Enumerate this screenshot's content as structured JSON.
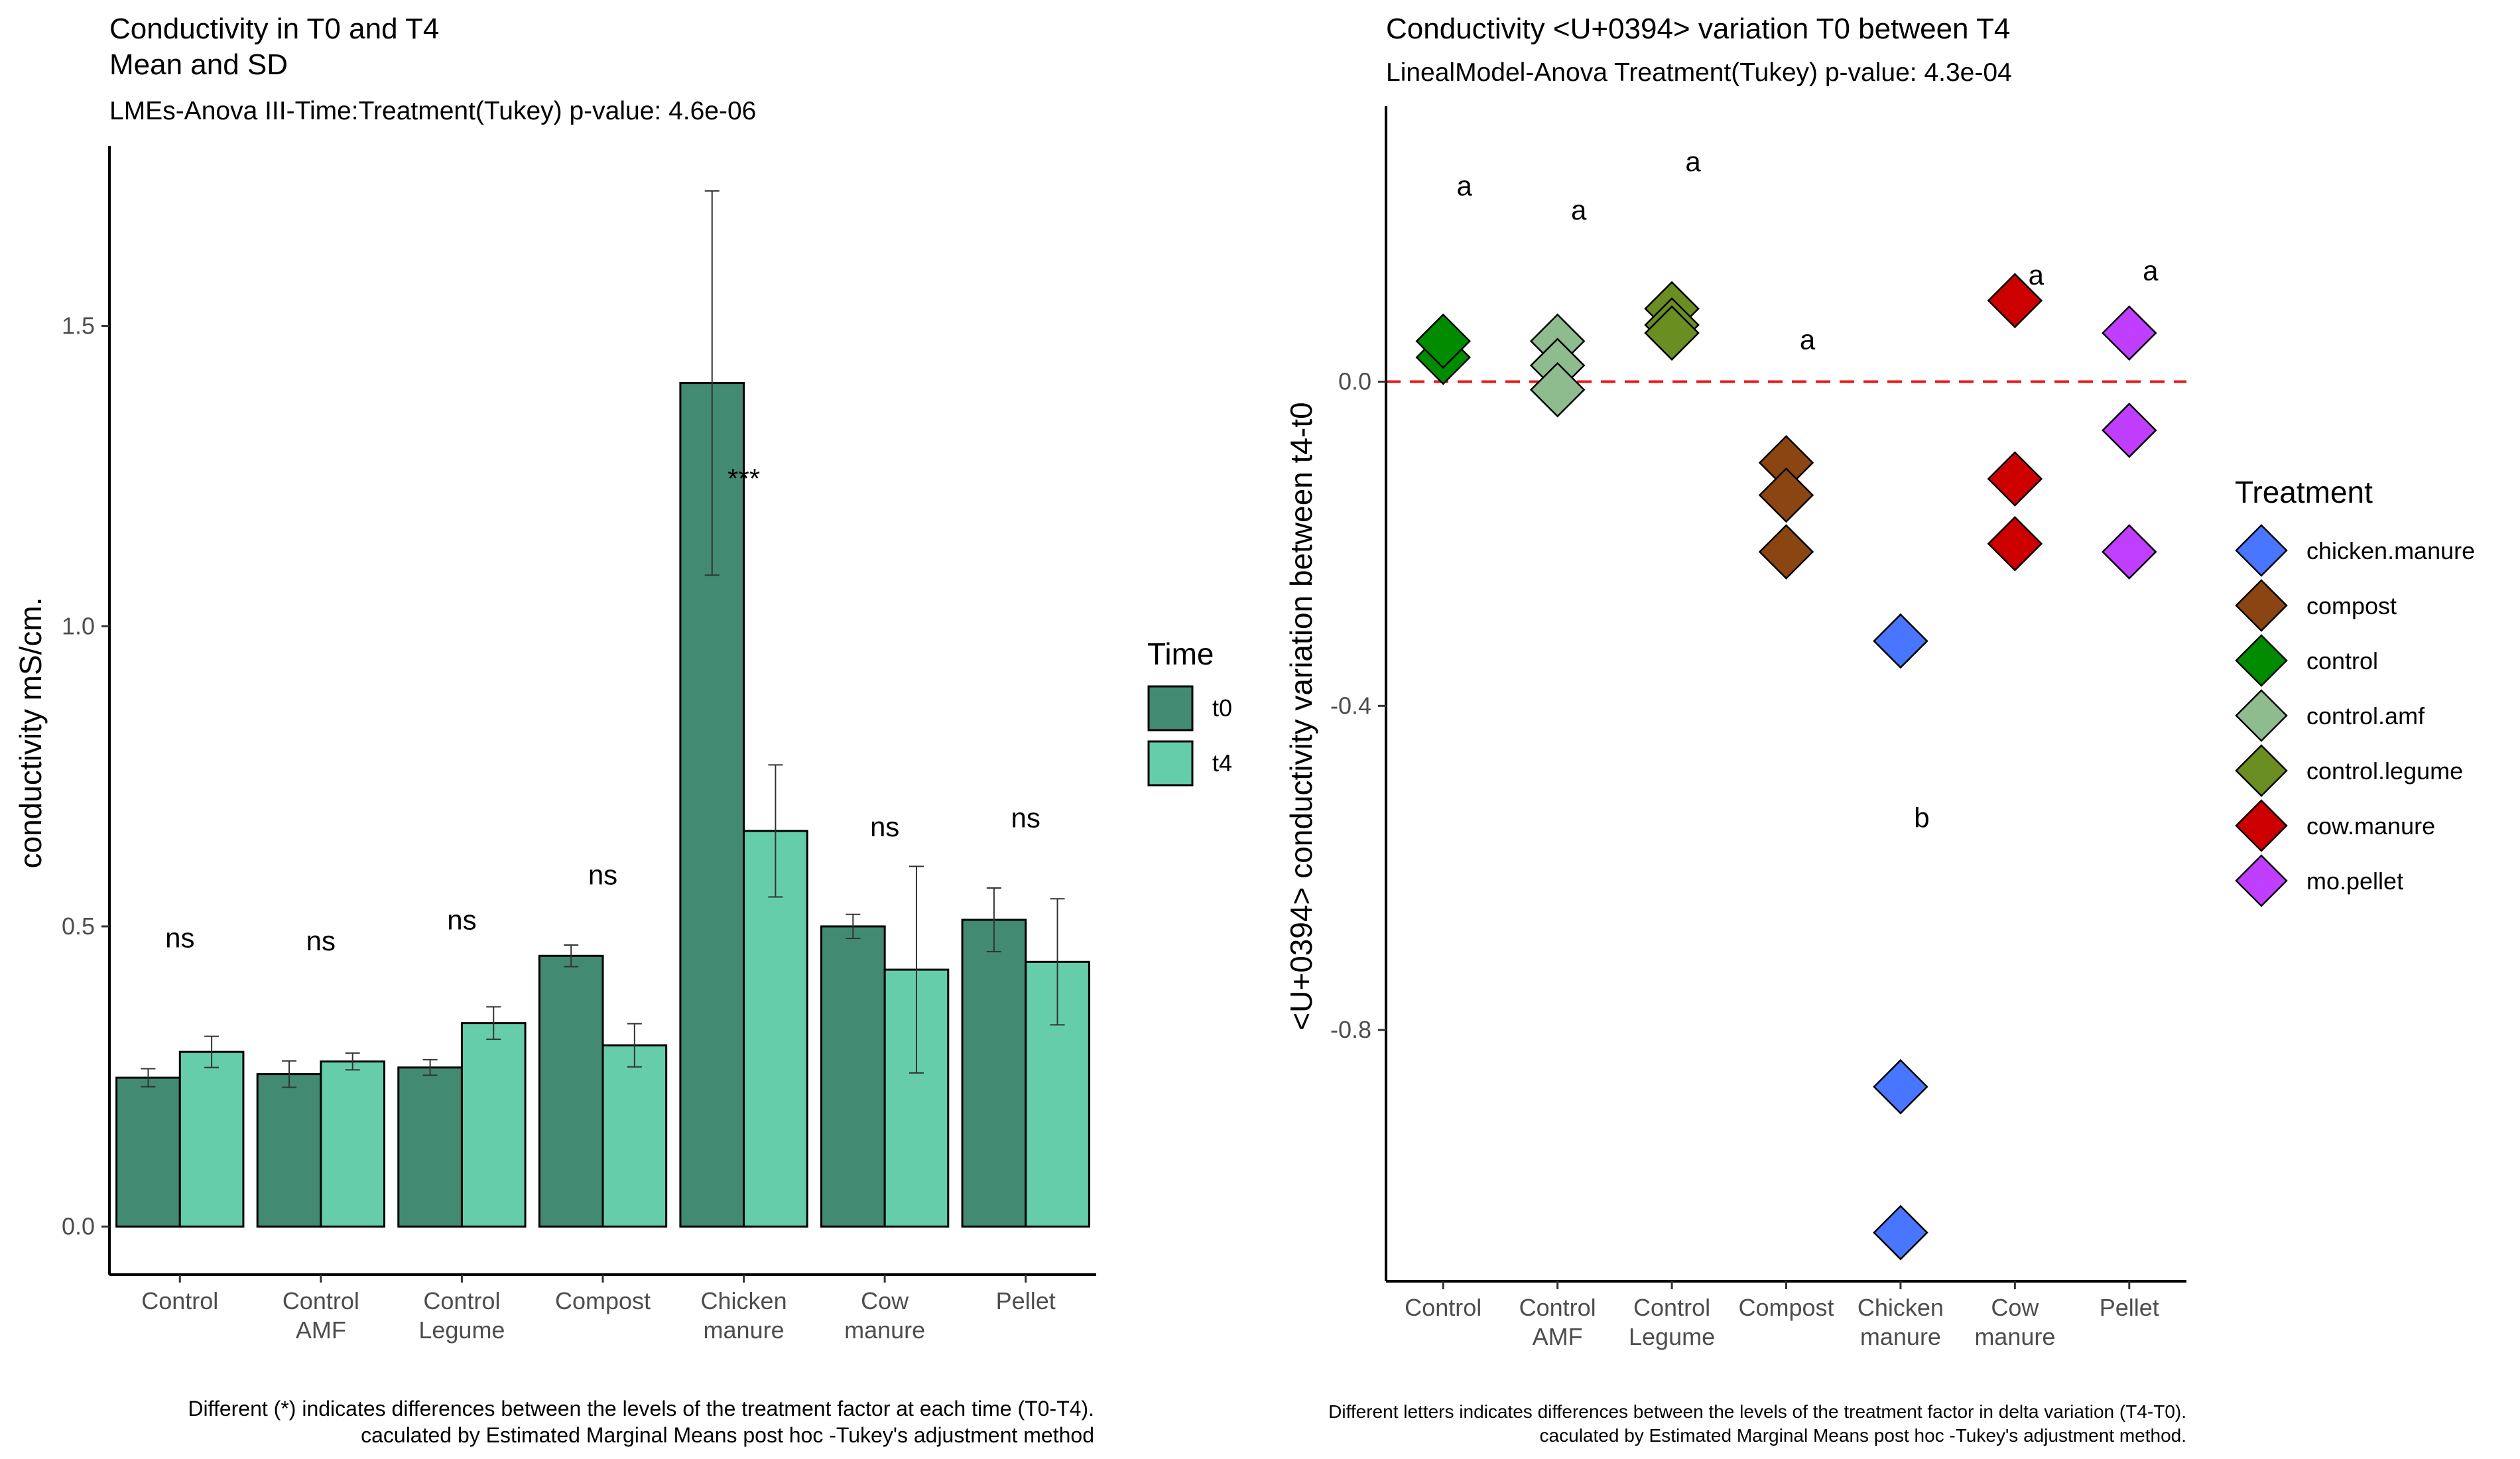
{
  "chart_data": [
    {
      "type": "bar",
      "title": "Conductivity in T0 and T4",
      "title_line2": "Mean and SD",
      "subtitle": "LMEs-Anova III-Time:Treatment(Tukey) p-value: 4.6e-06",
      "ylabel": "conductivity mS/cm.",
      "xlabel": "",
      "ylim": [
        -0.08,
        1.8
      ],
      "yticks": [
        0.0,
        0.5,
        1.0,
        1.5
      ],
      "ytick_labels": [
        "0.0",
        "0.5",
        "1.0",
        "1.5"
      ],
      "categories": [
        [
          "Control"
        ],
        [
          "Control",
          "AMF"
        ],
        [
          "Control",
          "Legume"
        ],
        [
          "Compost"
        ],
        [
          "Chicken",
          "manure"
        ],
        [
          "Cow",
          "manure"
        ],
        [
          "Pellet"
        ]
      ],
      "legend_title": "Time",
      "legend_position": "right",
      "series": [
        {
          "name": "t0",
          "color": "#438A72",
          "values": [
            0.248,
            0.254,
            0.265,
            0.451,
            1.405,
            0.5,
            0.511
          ],
          "sd": [
            0.015,
            0.022,
            0.013,
            0.018,
            0.32,
            0.02,
            0.053
          ]
        },
        {
          "name": "t4",
          "color": "#66CDAA",
          "values": [
            0.291,
            0.275,
            0.339,
            0.302,
            0.659,
            0.428,
            0.441
          ],
          "sd": [
            0.026,
            0.014,
            0.027,
            0.036,
            0.11,
            0.172,
            0.105
          ]
        }
      ],
      "annotations": [
        {
          "category": 0,
          "label": "ns",
          "y": 0.465
        },
        {
          "category": 1,
          "label": "ns",
          "y": 0.46
        },
        {
          "category": 2,
          "label": "ns",
          "y": 0.495
        },
        {
          "category": 3,
          "label": "ns",
          "y": 0.57
        },
        {
          "category": 4,
          "label": "***",
          "y": 1.23
        },
        {
          "category": 5,
          "label": "ns",
          "y": 0.65
        },
        {
          "category": 6,
          "label": "ns",
          "y": 0.665
        }
      ],
      "caption": [
        "Different (*) indicates differences between the levels of the treatment factor at each time (T0-T4).",
        "caculated by Estimated Marginal Means post hoc -Tukey's adjustment method"
      ]
    },
    {
      "type": "scatter",
      "title": "Conductivity <U+0394> variation T0 between T4",
      "subtitle": "LinealModel-Anova Treatment(Tukey) p-value: 4.3e-04",
      "ylabel": "<U+0394> conductivity variation between t4-t0",
      "xlabel": "",
      "ylim": [
        -1.11,
        0.34
      ],
      "yticks": [
        0.0,
        -0.4,
        -0.8
      ],
      "ytick_labels": [
        "0.0",
        "-0.4",
        "-0.8"
      ],
      "reference_line": {
        "y": 0.0,
        "color": "#E41A1C",
        "style": "dashed"
      },
      "categories": [
        [
          "Control"
        ],
        [
          "Control",
          "AMF"
        ],
        [
          "Control",
          "Legume"
        ],
        [
          "Compost"
        ],
        [
          "Chicken",
          "manure"
        ],
        [
          "Cow",
          "manure"
        ],
        [
          "Pellet"
        ]
      ],
      "legend_title": "Treatment",
      "legend_position": "right",
      "series": [
        {
          "name": "control",
          "color": "#008B00",
          "category": 0,
          "values": [
            0.03,
            0.05
          ]
        },
        {
          "name": "control.amf",
          "color": "#8FBC8F",
          "category": 1,
          "values": [
            0.05,
            0.02,
            -0.01
          ]
        },
        {
          "name": "control.legume",
          "color": "#6B8E23",
          "category": 2,
          "values": [
            0.09,
            0.07,
            0.06
          ]
        },
        {
          "name": "compost",
          "color": "#8B4513",
          "category": 3,
          "values": [
            -0.1,
            -0.14,
            -0.21
          ]
        },
        {
          "name": "chicken.manure",
          "color": "#4876FF",
          "category": 4,
          "values": [
            -0.32,
            -0.87,
            -1.05
          ]
        },
        {
          "name": "cow.manure",
          "color": "#CD0000",
          "category": 5,
          "values": [
            0.1,
            -0.12,
            -0.2
          ]
        },
        {
          "name": "mo.pellet",
          "color": "#BF3EFF",
          "category": 6,
          "values": [
            0.06,
            -0.06,
            -0.21
          ]
        }
      ],
      "legend_order": [
        "chicken.manure",
        "compost",
        "control",
        "control.amf",
        "control.legume",
        "cow.manure",
        "mo.pellet"
      ],
      "annotations": [
        {
          "category": 0,
          "label": "a",
          "y": 0.23
        },
        {
          "category": 1,
          "label": "a",
          "y": 0.2
        },
        {
          "category": 2,
          "label": "a",
          "y": 0.26
        },
        {
          "category": 3,
          "label": "a",
          "y": 0.04
        },
        {
          "category": 4,
          "label": "b",
          "y": -0.55
        },
        {
          "category": 5,
          "label": "a",
          "y": 0.12
        },
        {
          "category": 6,
          "label": "a",
          "y": 0.125
        }
      ],
      "caption": [
        "Different letters indicates differences between the levels of the treatment factor in delta variation (T4-T0).",
        "caculated by Estimated Marginal Means post hoc -Tukey's adjustment method."
      ]
    }
  ]
}
